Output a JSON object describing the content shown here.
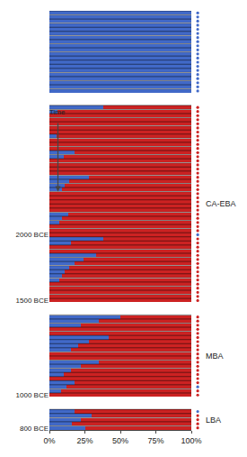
{
  "chart_data": {
    "type": "bar",
    "orientation": "horizontal",
    "stacked": true,
    "grid": false,
    "categories": [
      null,
      null,
      null,
      null,
      null,
      null,
      null,
      null,
      null,
      null,
      null,
      null,
      null,
      null,
      null,
      null,
      null,
      null,
      null,
      null,
      null,
      null,
      null,
      null,
      null,
      null,
      null,
      null,
      null,
      null,
      null,
      null,
      null,
      null,
      null,
      null,
      null,
      null,
      null,
      null,
      null,
      null,
      null,
      null,
      null,
      null,
      null,
      null,
      null,
      null,
      null,
      null,
      null,
      null,
      "2000 BCE",
      null,
      null,
      null,
      null,
      null,
      null,
      null,
      null,
      null,
      null,
      null,
      null,
      null,
      null,
      null,
      "1500 BCE",
      null,
      null,
      null,
      null,
      null,
      null,
      null,
      null,
      null,
      null,
      null,
      null,
      null,
      null,
      null,
      null,
      null,
      null,
      null,
      null,
      null,
      null,
      "1000 BCE",
      null,
      null,
      null,
      null,
      null,
      null,
      null,
      "800 BCE"
    ],
    "series": [
      {
        "color": "#4169C8",
        "values": [
          1.0,
          1.0,
          1.0,
          1.0,
          1.0,
          1.0,
          1.0,
          1.0,
          1.0,
          1.0,
          1.0,
          1.0,
          1.0,
          1.0,
          1.0,
          1.0,
          1.0,
          1.0,
          1.0,
          1.0,
          null,
          null,
          null,
          0.38,
          0.06,
          0.0,
          0.0,
          0.0,
          0.0,
          0.0,
          0.05,
          0.0,
          0.0,
          0.0,
          0.18,
          0.1,
          0.0,
          0.0,
          0.0,
          0.0,
          0.28,
          0.14,
          0.11,
          0.09,
          0.0,
          0.0,
          0.0,
          0.0,
          0.0,
          0.13,
          0.09,
          0.07,
          0.0,
          0.0,
          0.0,
          0.38,
          0.15,
          0.0,
          0.0,
          0.33,
          0.24,
          0.18,
          0.14,
          0.11,
          0.09,
          0.07,
          0.0,
          0.0,
          0.0,
          0.0,
          0.0,
          null,
          null,
          null,
          0.5,
          0.35,
          0.22,
          0.0,
          0.0,
          0.42,
          0.28,
          0.2,
          0.15,
          0.0,
          0.0,
          0.35,
          0.22,
          0.15,
          0.1,
          0.0,
          0.18,
          0.12,
          0.08,
          0.0,
          null,
          null,
          null,
          0.18,
          0.3,
          0.22,
          0.16,
          0.25
        ]
      },
      {
        "color": "#CC2222",
        "values": [
          0,
          0,
          0,
          0,
          0,
          0,
          0,
          0,
          0,
          0,
          0,
          0,
          0,
          0,
          0,
          0,
          0,
          0,
          0,
          0,
          null,
          null,
          null,
          0.62,
          0.94,
          1,
          1,
          1,
          1,
          1,
          0.95,
          1,
          1,
          1,
          0.82,
          0.9,
          1,
          1,
          1,
          1,
          0.72,
          0.86,
          0.89,
          0.91,
          1,
          1,
          1,
          1,
          1,
          0.87,
          0.91,
          0.93,
          1,
          1,
          1,
          0.62,
          0.85,
          1,
          1,
          0.67,
          0.76,
          0.82,
          0.86,
          0.89,
          0.91,
          0.93,
          1,
          1,
          1,
          1,
          1,
          null,
          null,
          null,
          0.5,
          0.65,
          0.78,
          1,
          1,
          0.58,
          0.72,
          0.8,
          0.85,
          1,
          1,
          0.65,
          0.78,
          0.85,
          0.9,
          1,
          0.82,
          0.88,
          0.92,
          1,
          null,
          null,
          null,
          0.82,
          0.7,
          0.78,
          0.84,
          0.75
        ]
      },
      {
        "type": "scatter",
        "marker": "circle",
        "colors": [
          "#4169C8",
          "#4169C8",
          "#4169C8",
          "#4169C8",
          "#4169C8",
          "#4169C8",
          "#4169C8",
          "#4169C8",
          "#4169C8",
          "#4169C8",
          "#4169C8",
          "#4169C8",
          "#4169C8",
          "#4169C8",
          "#4169C8",
          "#4169C8",
          "#4169C8",
          "#4169C8",
          "#4169C8",
          "#4169C8",
          null,
          null,
          null,
          "#CC2222",
          "#CC2222",
          "#CC2222",
          "#CC2222",
          "#CC2222",
          "#CC2222",
          "#CC2222",
          "#CC2222",
          "#CC2222",
          "#CC2222",
          "#CC2222",
          "#CC2222",
          "#CC2222",
          "#CC2222",
          "#CC2222",
          "#CC2222",
          "#CC2222",
          "#CC2222",
          "#CC2222",
          "#CC2222",
          "#CC2222",
          "#CC2222",
          "#CC2222",
          "#CC2222",
          "#CC2222",
          "#CC2222",
          "#CC2222",
          "#CC2222",
          "#CC2222",
          "#CC2222",
          "#CC2222",
          "#4169C8",
          "#CC2222",
          "#CC2222",
          "#CC2222",
          "#CC2222",
          "#CC2222",
          "#CC2222",
          "#CC2222",
          "#CC2222",
          "#CC2222",
          "#CC2222",
          "#CC2222",
          "#CC2222",
          "#CC2222",
          "#CC2222",
          "#CC2222",
          "#CC2222",
          null,
          null,
          null,
          "#CC2222",
          "#CC2222",
          "#CC2222",
          "#CC2222",
          "#CC2222",
          "#CC2222",
          "#CC2222",
          "#CC2222",
          "#CC2222",
          "#CC2222",
          "#CC2222",
          "#CC2222",
          "#CC2222",
          "#CC2222",
          "#CC2222",
          "#CC2222",
          "#CC2222",
          "#4169C8",
          "#CC2222",
          "#CC2222",
          null,
          null,
          null,
          "#4169C8",
          "#CC2222",
          "#CC2222",
          "#CC2222",
          "#CC2222"
        ]
      }
    ],
    "annotations": [
      {
        "text": "CA-EBA",
        "section": 1
      },
      {
        "text": "MBA",
        "section": 2
      },
      {
        "text": "LBA",
        "section": 3
      },
      {
        "text": "Time",
        "arrow": true,
        "x": 0.06,
        "rows": [
          27,
          43
        ]
      }
    ],
    "xlim": [
      0,
      1
    ],
    "xticks": [
      {
        "value": 0,
        "label": "0%"
      },
      {
        "value": 0.25,
        "label": "25%"
      },
      {
        "value": 0.5,
        "label": "50%"
      },
      {
        "value": 0.75,
        "label": "75%"
      },
      {
        "value": 1.0,
        "label": "100%"
      }
    ]
  }
}
